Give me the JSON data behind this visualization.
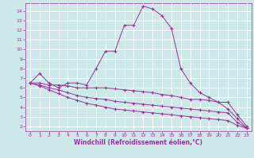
{
  "bg_color": "#cce8e8",
  "grid_color": "#b0d8d8",
  "line_color": "#993399",
  "xlabel": "Windchill (Refroidissement éolien,°C)",
  "ylabel_ticks": [
    2,
    3,
    4,
    5,
    6,
    7,
    8,
    9,
    10,
    11,
    12,
    13,
    14
  ],
  "xticks": [
    0,
    1,
    2,
    3,
    4,
    5,
    6,
    7,
    8,
    9,
    10,
    11,
    12,
    13,
    14,
    15,
    16,
    17,
    18,
    19,
    20,
    21,
    22,
    23
  ],
  "xlim": [
    -0.5,
    23.5
  ],
  "ylim": [
    1.5,
    14.8
  ],
  "line1_x": [
    0,
    1,
    2,
    3,
    4,
    5,
    6,
    7,
    8,
    9,
    10,
    11,
    12,
    13,
    14,
    15,
    16,
    17,
    18,
    19,
    20,
    21,
    22,
    23
  ],
  "line1_y": [
    6.5,
    7.5,
    6.5,
    6.0,
    6.5,
    6.5,
    6.3,
    8.0,
    9.8,
    9.8,
    12.5,
    12.5,
    14.5,
    14.2,
    13.5,
    12.2,
    8.0,
    6.5,
    5.5,
    5.0,
    4.5,
    3.8,
    2.8,
    1.8
  ],
  "line2_x": [
    0,
    1,
    2,
    3,
    4,
    5,
    6,
    7,
    8,
    9,
    10,
    11,
    12,
    13,
    14,
    15,
    16,
    17,
    18,
    19,
    20,
    21,
    22,
    23
  ],
  "line2_y": [
    6.5,
    6.5,
    6.3,
    6.3,
    6.2,
    6.0,
    6.0,
    6.0,
    6.0,
    5.9,
    5.8,
    5.7,
    5.6,
    5.5,
    5.3,
    5.2,
    5.0,
    4.8,
    4.8,
    4.7,
    4.5,
    4.5,
    3.2,
    2.0
  ],
  "line3_x": [
    0,
    1,
    2,
    3,
    4,
    5,
    6,
    7,
    8,
    9,
    10,
    11,
    12,
    13,
    14,
    15,
    16,
    17,
    18,
    19,
    20,
    21,
    22,
    23
  ],
  "line3_y": [
    6.5,
    6.3,
    6.0,
    5.8,
    5.5,
    5.2,
    5.0,
    4.9,
    4.8,
    4.6,
    4.5,
    4.4,
    4.3,
    4.2,
    4.1,
    4.0,
    3.9,
    3.8,
    3.7,
    3.6,
    3.5,
    3.4,
    2.4,
    1.8
  ],
  "line4_x": [
    0,
    1,
    2,
    3,
    4,
    5,
    6,
    7,
    8,
    9,
    10,
    11,
    12,
    13,
    14,
    15,
    16,
    17,
    18,
    19,
    20,
    21,
    22,
    23
  ],
  "line4_y": [
    6.5,
    6.2,
    5.8,
    5.4,
    5.0,
    4.7,
    4.4,
    4.2,
    4.0,
    3.8,
    3.7,
    3.6,
    3.5,
    3.4,
    3.3,
    3.2,
    3.1,
    3.0,
    2.9,
    2.8,
    2.7,
    2.6,
    2.1,
    1.8
  ]
}
